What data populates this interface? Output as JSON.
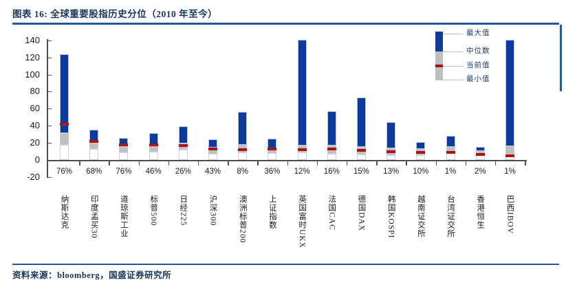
{
  "header": {
    "title": "图表 16:  全球重要股指历史分位（2010 年至今）"
  },
  "footer": {
    "text": "资料来源：bloomberg，国盛证券研究所"
  },
  "legend": {
    "items": [
      "最大值",
      "中位数",
      "当前值",
      "最小值"
    ]
  },
  "colors": {
    "bar_blue": "#0d3a9d",
    "bar_gray": "#bfbfbf",
    "current_red": "#b01210",
    "rule_blue": "#2457a0",
    "text_navy": "#17365d",
    "axis_gray": "#4d4d4d"
  },
  "chart_data": {
    "type": "bar",
    "subtype": "floating-range-with-marker",
    "title": "全球重要股指历史分位（2010 年至今）",
    "grid": false,
    "legend_position": "top-right",
    "ylim": [
      -20,
      140
    ],
    "yticks": [
      140,
      120,
      100,
      80,
      60,
      40,
      20,
      0,
      -20
    ],
    "categories": [
      "纳斯达克",
      "印度孟买30",
      "道琼斯工业",
      "标普500",
      "日经225",
      "沪深300",
      "澳洲标普200",
      "上证指数",
      "英国富时UKX",
      "法国CAC",
      "德国DAX",
      "韩国KOSPI",
      "越南证交所",
      "台湾证交所",
      "香港恒生",
      "巴西IBOV"
    ],
    "percent_labels": [
      "76%",
      "68%",
      "76%",
      "46%",
      "26%",
      "43%",
      "8%",
      "36%",
      "12%",
      "16%",
      "15%",
      "13%",
      "10%",
      "1%",
      "2%",
      "1%"
    ],
    "series": [
      {
        "name": "最小值",
        "values": [
          18,
          13,
          9,
          10,
          12,
          7.5,
          9,
          8,
          8.5,
          7.5,
          6.5,
          6,
          5.5,
          9.5,
          6.5,
          5
        ]
      },
      {
        "name": "中位数",
        "values": [
          31,
          20,
          15.5,
          18,
          19.5,
          14.5,
          18,
          14,
          17,
          17,
          15.5,
          14,
          12.5,
          15.5,
          10.5,
          16
        ]
      },
      {
        "name": "当前值",
        "values": [
          42,
          21.5,
          18,
          17.5,
          17,
          13,
          12,
          12.5,
          12,
          12.5,
          11.5,
          10,
          9,
          9,
          6.5,
          4.5
        ]
      },
      {
        "name": "最大值",
        "values": [
          124,
          35.5,
          25.5,
          31,
          39.5,
          24,
          56,
          25,
          141,
          57,
          73,
          44,
          21,
          28.5,
          15.5,
          141
        ]
      }
    ]
  }
}
